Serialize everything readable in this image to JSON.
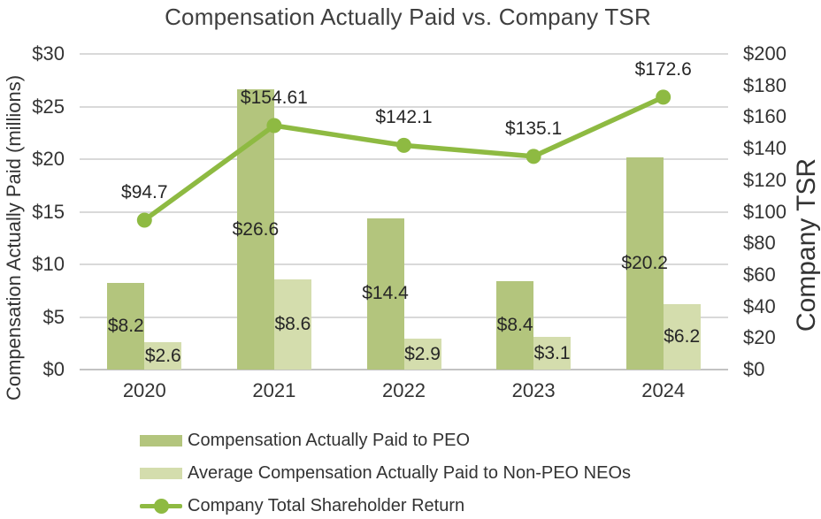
{
  "chart_data": {
    "type": "combo_bar_line",
    "title": "Compensation Actually Paid vs. Company TSR",
    "categories": [
      "2020",
      "2021",
      "2022",
      "2023",
      "2024"
    ],
    "series": [
      {
        "name": "Compensation Actually Paid to PEO",
        "type": "bar",
        "axis": "left",
        "color": "#b3c57d",
        "values": [
          8.2,
          26.6,
          14.4,
          8.4,
          20.2
        ],
        "labels": [
          "$8.2",
          "$26.6",
          "$14.4",
          "$8.4",
          "$20.2"
        ]
      },
      {
        "name": "Average Compensation Actually Paid to Non-PEO NEOs",
        "type": "bar",
        "axis": "left",
        "color": "#d4ddad",
        "values": [
          2.6,
          8.6,
          2.9,
          3.1,
          6.2
        ],
        "labels": [
          "$2.6",
          "$8.6",
          "$2.9",
          "$3.1",
          "$6.2"
        ]
      },
      {
        "name": "Company Total Shareholder Return",
        "type": "line",
        "axis": "right",
        "color": "#8eba42",
        "values": [
          94.7,
          154.61,
          142.1,
          135.1,
          172.6
        ],
        "labels": [
          "$94.7",
          "$154.61",
          "$142.1",
          "$135.1",
          "$172.6"
        ]
      }
    ],
    "left_axis": {
      "title": "Compensation Actually Paid (millions)",
      "min": 0,
      "max": 30,
      "step": 5,
      "tick_labels": [
        "$0",
        "$5",
        "$10",
        "$15",
        "$20",
        "$25",
        "$30"
      ]
    },
    "right_axis": {
      "title": "Company TSR",
      "min": 0,
      "max": 200,
      "step": 20,
      "tick_labels": [
        "$0",
        "$20",
        "$40",
        "$60",
        "$80",
        "$100",
        "$120",
        "$140",
        "$160",
        "$180",
        "$200"
      ]
    },
    "grid": true,
    "legend_position": "bottom-left",
    "colors": {
      "gridline": "#d9d9d9",
      "axis_line": "#c3c3c3",
      "title_text": "#3f3f3f",
      "label_text": "#262626",
      "tick_text": "#333333"
    }
  }
}
